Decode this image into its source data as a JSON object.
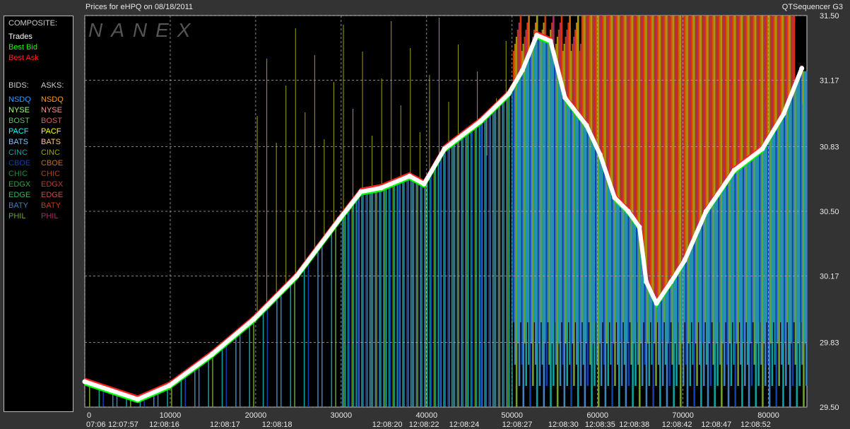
{
  "header": {
    "title": "Prices for  eHPQ  on  08/18/2011",
    "app": "QTSequencer G3"
  },
  "watermark": "NANEX",
  "legend": {
    "composite_label": "COMPOSITE:",
    "composite": [
      {
        "label": "Trades",
        "color": "#ffffff"
      },
      {
        "label": "Best Bid",
        "color": "#00ff00"
      },
      {
        "label": "Best Ask",
        "color": "#ff2020"
      }
    ],
    "bids_label": "BIDS:",
    "asks_label": "ASKS:",
    "bids": [
      {
        "label": "NSDQ",
        "color": "#2a9dff"
      },
      {
        "label": "NYSE",
        "color": "#a0ff80"
      },
      {
        "label": "BOST",
        "color": "#60c060"
      },
      {
        "label": "PACF",
        "color": "#00ffff"
      },
      {
        "label": "BATS",
        "color": "#70c8ff"
      },
      {
        "label": "CINC",
        "color": "#10a0a0"
      },
      {
        "label": "CBOE",
        "color": "#1040b0"
      },
      {
        "label": "CHIC",
        "color": "#109040"
      },
      {
        "label": "EDGX",
        "color": "#30a040"
      },
      {
        "label": "EDGE",
        "color": "#40b060"
      },
      {
        "label": "BATY",
        "color": "#4080c0"
      },
      {
        "label": "PHIL",
        "color": "#70a030"
      }
    ],
    "asks": [
      {
        "label": "NSDQ",
        "color": "#ff9a00"
      },
      {
        "label": "NYSE",
        "color": "#ff9090"
      },
      {
        "label": "BOST",
        "color": "#d06060"
      },
      {
        "label": "PACF",
        "color": "#ffff00"
      },
      {
        "label": "BATS",
        "color": "#ffc870"
      },
      {
        "label": "CINC",
        "color": "#a0a010"
      },
      {
        "label": "CBOE",
        "color": "#c07010"
      },
      {
        "label": "CHIC",
        "color": "#b04010"
      },
      {
        "label": "EDGX",
        "color": "#b04030"
      },
      {
        "label": "EDGE",
        "color": "#c05050"
      },
      {
        "label": "BATY",
        "color": "#e03000"
      },
      {
        "label": "PHIL",
        "color": "#a03060"
      }
    ]
  },
  "chart_data": {
    "type": "line",
    "title": "Prices for  eHPQ  on  08/18/2011",
    "xlim": [
      0,
      84500
    ],
    "ylim": [
      29.5,
      31.5
    ],
    "y_ticks": [
      "31.50",
      "31.17",
      "30.83",
      "30.50",
      "30.17",
      "29.83",
      "29.50"
    ],
    "x_ticks": [
      0,
      10000,
      20000,
      30000,
      40000,
      50000,
      60000,
      70000,
      80000
    ],
    "x_tick_labels": [
      "0",
      "10000",
      "20000",
      "30000",
      "40000",
      "50000",
      "60000",
      "70000",
      "80000"
    ],
    "time_labels": [
      {
        "x": 0,
        "label": "07:06"
      },
      {
        "x": 4500,
        "label": "12:07:57"
      },
      {
        "x": 9300,
        "label": "12:08:16"
      },
      {
        "x": 16400,
        "label": "12:08:17"
      },
      {
        "x": 22500,
        "label": "12:08:18"
      },
      {
        "x": 35400,
        "label": "12:08:20"
      },
      {
        "x": 39700,
        "label": "12:08:22"
      },
      {
        "x": 44400,
        "label": "12:08:24"
      },
      {
        "x": 50600,
        "label": "12:08:27"
      },
      {
        "x": 56000,
        "label": "12:08:30"
      },
      {
        "x": 60300,
        "label": "12:08:35"
      },
      {
        "x": 64300,
        "label": "12:08:38"
      },
      {
        "x": 69300,
        "label": "12:08:42"
      },
      {
        "x": 73900,
        "label": "12:08:47"
      },
      {
        "x": 78500,
        "label": "12:08:52"
      }
    ],
    "grid": true,
    "series": [
      {
        "name": "Trades",
        "color": "#ffffff",
        "x": [
          0,
          6200,
          9900,
          14900,
          19800,
          24800,
          29800,
          32300,
          34700,
          38000,
          39700,
          42100,
          46300,
          49600,
          51200,
          52900,
          54500,
          56200,
          58700,
          60300,
          62000,
          63600,
          64900,
          65700,
          66900,
          68600,
          70200,
          72700,
          76000,
          79300,
          81800,
          83900
        ],
        "y": [
          29.63,
          29.54,
          29.61,
          29.77,
          29.95,
          30.17,
          30.46,
          30.6,
          30.62,
          30.68,
          30.64,
          30.82,
          30.96,
          31.1,
          31.22,
          31.4,
          31.37,
          31.08,
          30.94,
          30.79,
          30.57,
          30.5,
          30.42,
          30.14,
          30.03,
          30.14,
          30.25,
          30.5,
          30.71,
          30.82,
          31.0,
          31.23
        ]
      }
    ]
  }
}
